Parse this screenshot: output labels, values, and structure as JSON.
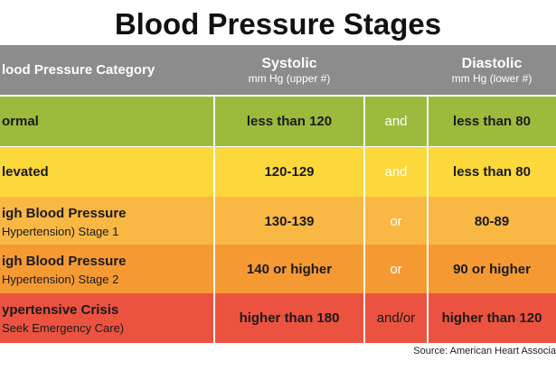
{
  "title": "Blood Pressure Stages",
  "table": {
    "columns": [
      {
        "title": "lood Pressure Category"
      },
      {
        "title": "Systolic",
        "subtitle": "mm Hg (upper #)"
      },
      {
        "title": ""
      },
      {
        "title": "Diastolic",
        "subtitle": "mm Hg (lower #)"
      }
    ],
    "rows": [
      {
        "category": [
          "ormal"
        ],
        "systolic": "less than 120",
        "connector": "and",
        "diastolic": "less than 80"
      },
      {
        "category": [
          "levated"
        ],
        "systolic": "120-129",
        "connector": "and",
        "diastolic": "less than 80"
      },
      {
        "category": [
          "igh Blood Pressure",
          "Hypertension) Stage 1"
        ],
        "systolic": "130-139",
        "connector": "or",
        "diastolic": "80-89"
      },
      {
        "category": [
          "igh Blood Pressure",
          "Hypertension) Stage 2"
        ],
        "systolic": "140 or higher",
        "connector": "or",
        "diastolic": "90 or higher"
      },
      {
        "category": [
          "ypertensive Crisis",
          "Seek Emergency Care)"
        ],
        "systolic": "higher than 180",
        "connector": "and/or",
        "diastolic": "higher than 120"
      }
    ]
  },
  "source": "Source: American Heart Associa"
}
